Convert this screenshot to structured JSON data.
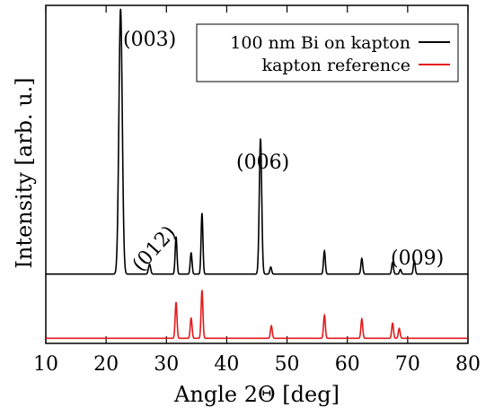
{
  "chart_data": {
    "type": "line",
    "xlabel": "Angle 2Θ [deg]",
    "ylabel": "Intensity [arb. u.]",
    "xlim": [
      10,
      80
    ],
    "ylim": [
      0,
      100
    ],
    "xticks": [
      10,
      20,
      30,
      40,
      50,
      60,
      70,
      80
    ],
    "grid": false,
    "legend_placement": "top-right",
    "series": [
      {
        "name": "100 nm Bi on kapton",
        "color": "#000000",
        "baseline": 20.5,
        "peaks": [
          {
            "x": 22.4,
            "y": 99.0,
            "w": 0.28
          },
          {
            "x": 27.2,
            "y": 23.4,
            "w": 0.18
          },
          {
            "x": 31.6,
            "y": 31.6,
            "w": 0.15
          },
          {
            "x": 34.1,
            "y": 26.8,
            "w": 0.15
          },
          {
            "x": 35.9,
            "y": 38.5,
            "w": 0.15
          },
          {
            "x": 45.6,
            "y": 60.6,
            "w": 0.2
          },
          {
            "x": 47.3,
            "y": 22.6,
            "w": 0.15
          },
          {
            "x": 56.2,
            "y": 27.3,
            "w": 0.15
          },
          {
            "x": 62.4,
            "y": 25.1,
            "w": 0.15
          },
          {
            "x": 67.5,
            "y": 24.0,
            "w": 0.15
          },
          {
            "x": 68.8,
            "y": 21.9,
            "w": 0.15
          },
          {
            "x": 71.1,
            "y": 24.5,
            "w": 0.15
          }
        ]
      },
      {
        "name": "kapton reference",
        "color": "#e41a1c",
        "baseline": 1.5,
        "peaks": [
          {
            "x": 31.6,
            "y": 12.2,
            "w": 0.15
          },
          {
            "x": 34.1,
            "y": 7.5,
            "w": 0.15
          },
          {
            "x": 35.9,
            "y": 15.7,
            "w": 0.15
          },
          {
            "x": 47.4,
            "y": 5.2,
            "w": 0.15
          },
          {
            "x": 56.2,
            "y": 8.3,
            "w": 0.15
          },
          {
            "x": 62.4,
            "y": 7.2,
            "w": 0.15
          },
          {
            "x": 67.5,
            "y": 6.0,
            "w": 0.15
          },
          {
            "x": 68.6,
            "y": 4.4,
            "w": 0.15
          }
        ]
      }
    ],
    "annotations": [
      "(003)",
      "(012)",
      "(006)",
      "(009)"
    ]
  }
}
